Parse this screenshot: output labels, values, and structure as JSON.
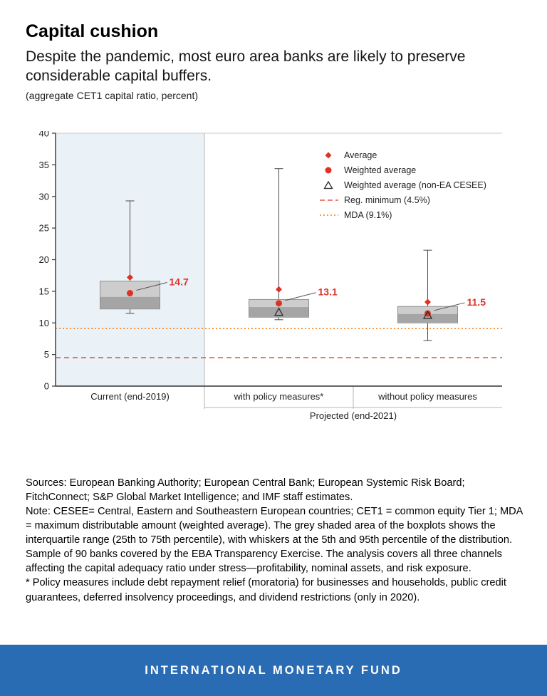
{
  "header": {
    "title": "Capital cushion",
    "subtitle": "Despite the pandemic, most euro area banks are likely to preserve considerable capital buffers.",
    "unit": "(aggregate CET1 capital ratio, percent)"
  },
  "chart_data": {
    "type": "boxplot",
    "title": "Capital cushion",
    "ylabel": "aggregate CET1 capital ratio, percent",
    "ylim": [
      0,
      40
    ],
    "ytick_step": 5,
    "categories": [
      "Current (end-2019)",
      "with policy measures*",
      "without policy measures"
    ],
    "group_label": "Projected (end-2021)",
    "series": [
      {
        "name": "Current (end-2019)",
        "whisker_low": 11.5,
        "q1": 12.2,
        "median": 14.1,
        "q3": 16.6,
        "whisker_high": 29.3,
        "average": 17.2,
        "weighted_average": 14.7,
        "weighted_average_non_ea_cesee": null,
        "label": "14.7",
        "shaded": true
      },
      {
        "name": "with policy measures*",
        "whisker_low": 10.5,
        "q1": 10.9,
        "median": 12.5,
        "q3": 13.7,
        "whisker_high": 34.4,
        "average": 15.3,
        "weighted_average": 13.1,
        "weighted_average_non_ea_cesee": 11.7,
        "label": "13.1",
        "shaded": false
      },
      {
        "name": "without policy measures",
        "whisker_low": 7.2,
        "q1": 10.0,
        "median": 11.4,
        "q3": 12.6,
        "whisker_high": 21.5,
        "average": 13.3,
        "weighted_average": 11.5,
        "weighted_average_non_ea_cesee": 11.2,
        "label": "11.5",
        "shaded": false
      }
    ],
    "reference_lines": [
      {
        "name": "reg-minimum",
        "label": "Reg. minimum (4.5%)",
        "value": 4.5,
        "style": "dashed",
        "color": "#ef5348"
      },
      {
        "name": "mda",
        "label": "MDA (9.1%)",
        "value": 9.1,
        "style": "dotted",
        "color": "#f07e1a"
      }
    ],
    "legend": [
      {
        "label": "Average",
        "marker": "diamond",
        "color": "#e03127"
      },
      {
        "label": "Weighted average",
        "marker": "circle",
        "color": "#e03127"
      },
      {
        "label": "Weighted average (non-EA CESEE)",
        "marker": "triangle-open",
        "color": "#2b2b2b"
      },
      {
        "label": "Reg. minimum (4.5%)",
        "marker": "dashed-line",
        "color": "#ef5348"
      },
      {
        "label": "MDA (9.1%)",
        "marker": "dotted-line",
        "color": "#f07e1a"
      }
    ],
    "legend_position": "upper-right",
    "grid": false
  },
  "colors": {
    "accent_red": "#e03127",
    "box_fill": "#cdcdcd",
    "box_fill_dark": "#a5a5a5",
    "box_border": "#8e8e8e",
    "whisker": "#4a4a4a",
    "shaded_region": "#eaf2f8",
    "axis": "#333333",
    "grid_light": "#c9c9c9",
    "separator": "#b5b5b5",
    "footer_blue": "#2a6cb4"
  },
  "notes": {
    "sources": "Sources: European Banking Authority; European Central Bank; European Systemic Risk Board; FitchConnect; S&P Global Market Intelligence; and IMF staff estimates.",
    "note": "Note: CESEE= Central, Eastern and Southeastern European countries; CET1 = common equity Tier 1; MDA = maximum distributable amount (weighted average). The grey shaded area of the boxplots shows the interquartile range (25th to 75th percentile), with whiskers at the 5th and 95th percentile of the distribution. Sample of 90 banks covered by the EBA Transparency Exercise. The analysis covers all three channels affecting the capital adequacy ratio under stress—profitability, nominal assets, and risk exposure.",
    "footnote": "* Policy measures include debt repayment relief (moratoria) for businesses and households, public credit guarantees, deferred insolvency proceedings, and dividend restrictions (only in 2020)."
  },
  "footer": {
    "text": "INTERNATIONAL MONETARY FUND"
  }
}
